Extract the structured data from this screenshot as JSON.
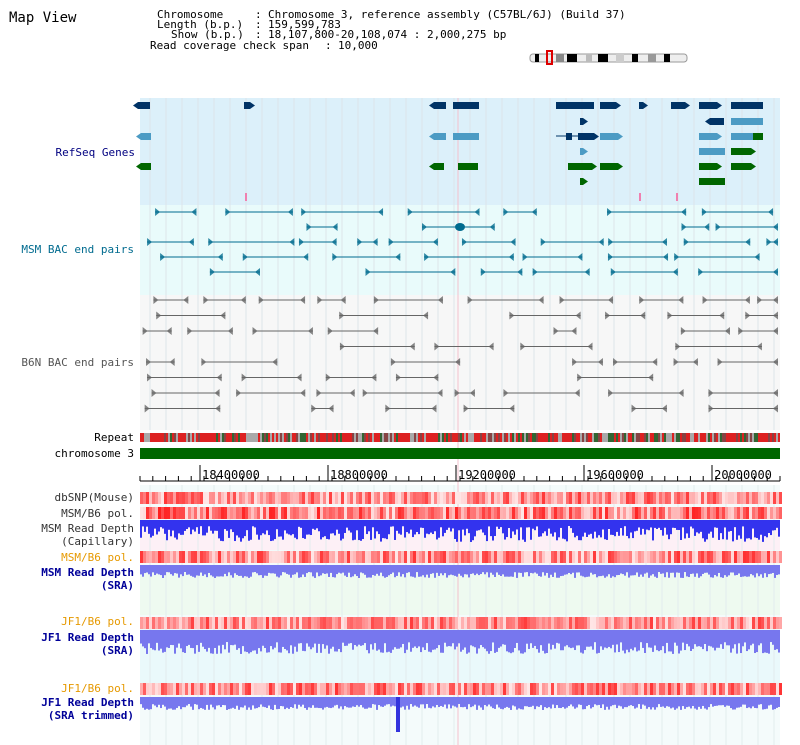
{
  "title": "Map View",
  "info": {
    "chromosome_label": "Chromosome",
    "chromosome_value": "Chromosome 3, reference assembly (C57BL/6J) (Build 37)",
    "length_label": "Length (b.p.)",
    "length_value": "159,599,783",
    "show_label": "Show (b.p.)",
    "show_value": "18,107,800-20,108,074 : 2,000,275 bp",
    "coverage_label": "Read coverage check span",
    "coverage_value": "10,000"
  },
  "tracks": {
    "refseq": "RefSeq Genes",
    "msm_bac": "MSM BAC end pairs",
    "b6n_bac": "B6N BAC end pairs",
    "repeat": "Repeat",
    "chromosome": "chromosome 3",
    "dbsnp": "dbSNP(Mouse)",
    "msm_b6_pol_cap": "MSM/B6 pol.",
    "msm_depth_cap_1": "MSM Read Depth",
    "msm_depth_cap_2": "(Capillary)",
    "msm_b6_pol_sra": "MSM/B6 pol.",
    "msm_depth_sra_1": "MSM Read Depth",
    "msm_depth_sra_2": "(SRA)",
    "jf1_b6_pol_1": "JF1/B6 pol.",
    "jf1_depth_1": "JF1 Read Depth",
    "jf1_depth_1b": "(SRA)",
    "jf1_b6_pol_2": "JF1/B6 pol.",
    "jf1_depth_2": "JF1 Read Depth",
    "jf1_depth_2b": "(SRA trimmed)"
  },
  "axis": {
    "ticks": [
      "18400000",
      "18800000",
      "19200000",
      "19600000",
      "20000000"
    ]
  },
  "colors": {
    "refseq_bg": "#dcf0fa",
    "msm_bg": "#e9fbfb",
    "b6n_bg": "#f7f7f7",
    "gene_dark": "#003366",
    "gene_mid": "#4c9bc4",
    "gene_green": "#006600",
    "msm_feature": "#006b8f",
    "b6n_feature": "#666666",
    "chromosome_bar": "#006600",
    "depth_blue": "#3333ee",
    "depth_light": "#7777ee"
  }
}
